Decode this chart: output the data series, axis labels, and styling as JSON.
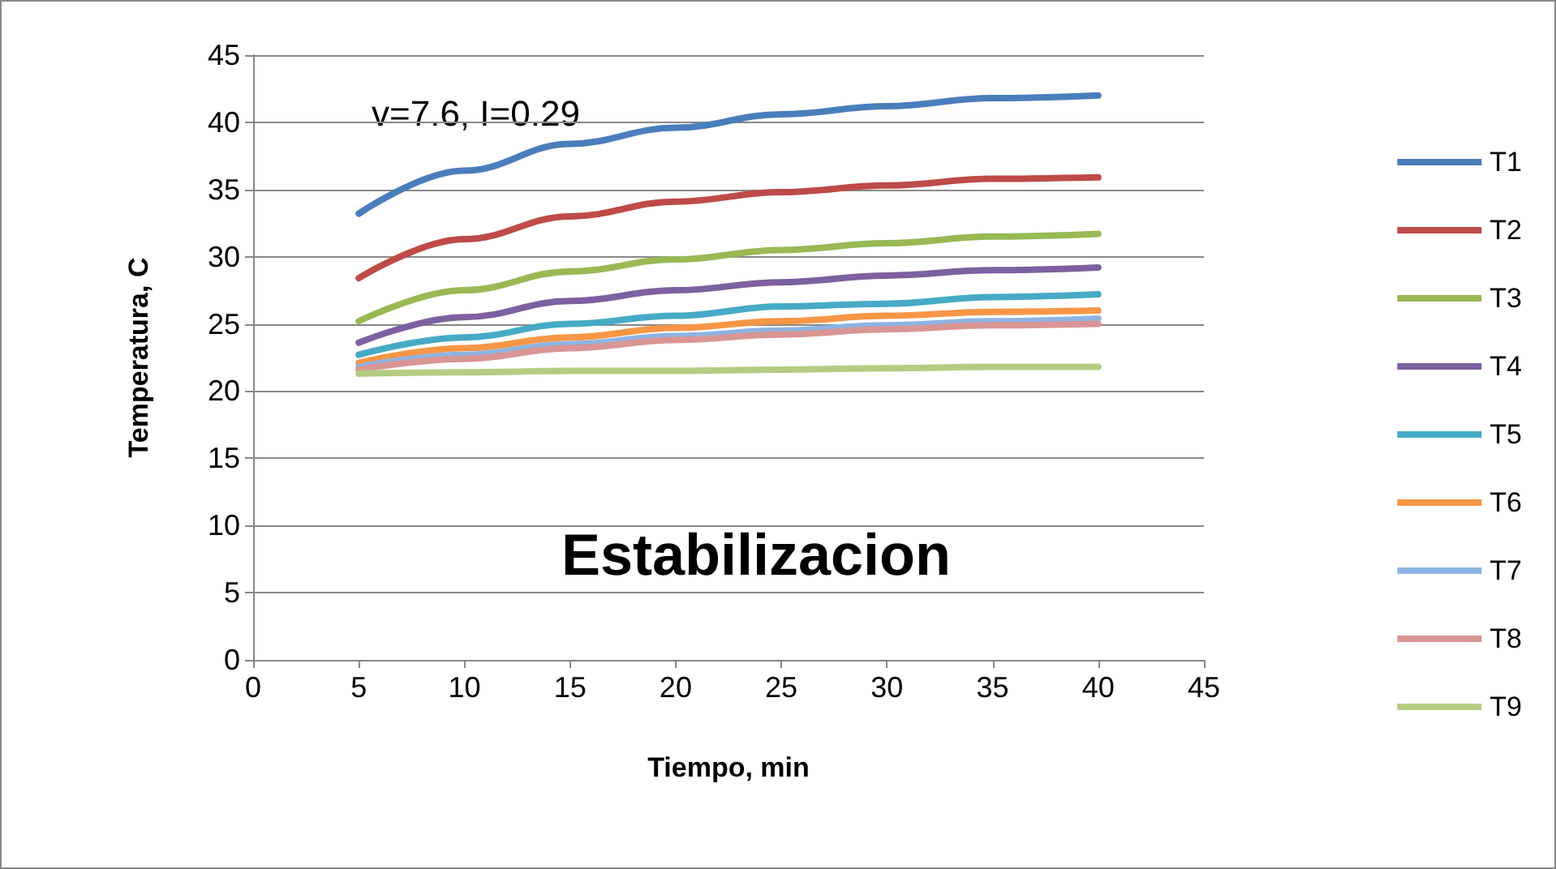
{
  "chart_data": {
    "type": "line",
    "title": "Estabilizacion",
    "xlabel": "Tiempo, min",
    "ylabel": "Temperatura, C",
    "annotations": [
      "v=7.6, I=0.29"
    ],
    "x": [
      5,
      10,
      15,
      20,
      25,
      30,
      35,
      40
    ],
    "series": [
      {
        "name": "T1",
        "color": "#4a7ebb",
        "values": [
          33.2,
          36.4,
          38.4,
          39.6,
          40.6,
          41.2,
          41.8,
          42.0
        ]
      },
      {
        "name": "T2",
        "color": "#be4b48",
        "values": [
          28.4,
          31.3,
          33.0,
          34.1,
          34.8,
          35.3,
          35.8,
          35.9
        ]
      },
      {
        "name": "T3",
        "color": "#98b954",
        "values": [
          25.2,
          27.5,
          28.9,
          29.8,
          30.5,
          31.0,
          31.5,
          31.7
        ]
      },
      {
        "name": "T4",
        "color": "#7d60a0",
        "values": [
          23.6,
          25.5,
          26.7,
          27.5,
          28.1,
          28.6,
          29.0,
          29.2
        ]
      },
      {
        "name": "T5",
        "color": "#46aac5",
        "values": [
          22.7,
          24.0,
          25.0,
          25.6,
          26.3,
          26.5,
          27.0,
          27.2
        ]
      },
      {
        "name": "T6",
        "color": "#f79646",
        "values": [
          22.1,
          23.2,
          24.0,
          24.7,
          25.2,
          25.6,
          25.9,
          26.0
        ]
      },
      {
        "name": "T7",
        "color": "#8eb4e3",
        "values": [
          21.8,
          22.7,
          23.5,
          24.1,
          24.5,
          24.9,
          25.2,
          25.4
        ]
      },
      {
        "name": "T8",
        "color": "#d99694",
        "values": [
          21.6,
          22.4,
          23.2,
          23.8,
          24.2,
          24.6,
          24.9,
          25.0
        ]
      },
      {
        "name": "T9",
        "color": "#b3cc82",
        "values": [
          21.3,
          21.4,
          21.5,
          21.5,
          21.6,
          21.7,
          21.8,
          21.8
        ]
      }
    ],
    "xlim": [
      0,
      45
    ],
    "xticks": [
      0,
      5,
      10,
      15,
      20,
      25,
      30,
      35,
      40,
      45
    ],
    "ylim": [
      0,
      45
    ],
    "yticks": [
      0,
      5,
      10,
      15,
      20,
      25,
      30,
      35,
      40,
      45
    ],
    "grid": "y",
    "legend": "right",
    "marker": "none",
    "line_style": "solid"
  }
}
